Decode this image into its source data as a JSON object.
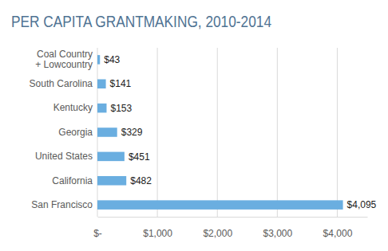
{
  "chart_data": {
    "type": "bar",
    "title": "PER CAPITA GRANTMAKING, 2010-2014",
    "orientation": "horizontal",
    "categories": [
      "Coal Country\n+ Lowcountry",
      "South Carolina",
      "Kentucky",
      "Georgia",
      "United States",
      "California",
      "San Francisco"
    ],
    "values": [
      43,
      141,
      153,
      329,
      451,
      482,
      4095
    ],
    "value_labels": [
      "$43",
      "$141",
      "$153",
      "$329",
      "$451",
      "$482",
      "$4,095"
    ],
    "data_labels": true,
    "color": "#6aaee0",
    "xlim": [
      0,
      4500
    ],
    "xticks": [
      {
        "value": 0,
        "label": "$-"
      },
      {
        "value": 1000,
        "label": "$1,000"
      },
      {
        "value": 2000,
        "label": "$2,000"
      },
      {
        "value": 3000,
        "label": "$3,000"
      },
      {
        "value": 4000,
        "label": "$4,000"
      }
    ],
    "grid": true
  }
}
